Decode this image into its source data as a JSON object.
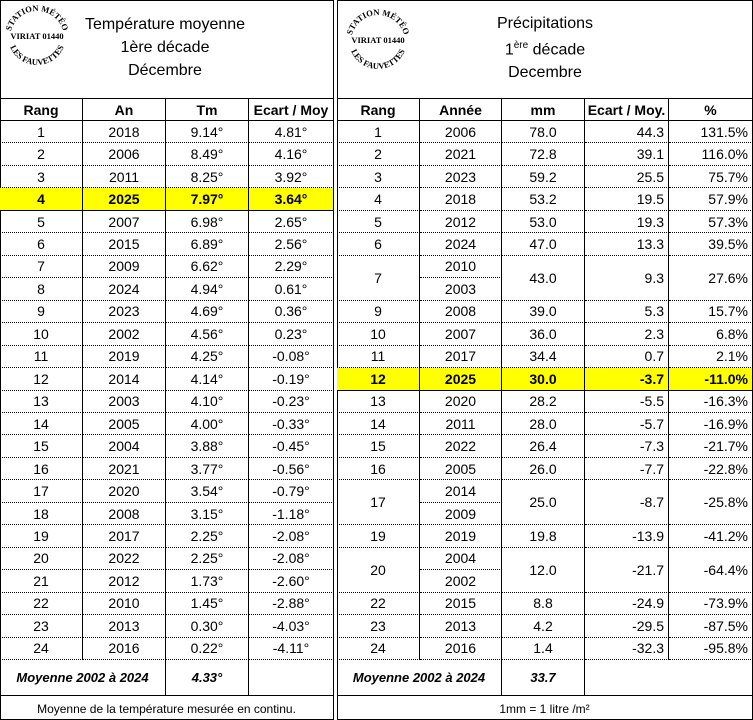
{
  "logo": {
    "top": "STATION MÉTÉO",
    "middle": "VIRIAT 01440",
    "bottom": "LES FAUVETTES"
  },
  "left": {
    "title": [
      "Température moyenne",
      "1ère décade",
      "Décembre"
    ],
    "columns": [
      "Rang",
      "An",
      "Tm",
      "Ecart / Moy"
    ],
    "rows": [
      {
        "cells": [
          "1",
          "2018",
          "9.14°",
          "4.81°"
        ]
      },
      {
        "cells": [
          "2",
          "2006",
          "8.49°",
          "4.16°"
        ]
      },
      {
        "cells": [
          "3",
          "2011",
          "8.25°",
          "3.92°"
        ]
      },
      {
        "cells": [
          "4",
          "2025",
          "7.97°",
          "3.64°"
        ],
        "highlight": true
      },
      {
        "cells": [
          "5",
          "2007",
          "6.98°",
          "2.65°"
        ]
      },
      {
        "cells": [
          "6",
          "2015",
          "6.89°",
          "2.56°"
        ]
      },
      {
        "cells": [
          "7",
          "2009",
          "6.62°",
          "2.29°"
        ]
      },
      {
        "cells": [
          "8",
          "2024",
          "4.94°",
          "0.61°"
        ]
      },
      {
        "cells": [
          "9",
          "2023",
          "4.69°",
          "0.36°"
        ]
      },
      {
        "cells": [
          "10",
          "2002",
          "4.56°",
          "0.23°"
        ]
      },
      {
        "cells": [
          "11",
          "2019",
          "4.25°",
          "-0.08°"
        ]
      },
      {
        "cells": [
          "12",
          "2014",
          "4.14°",
          "-0.19°"
        ]
      },
      {
        "cells": [
          "13",
          "2003",
          "4.10°",
          "-0.23°"
        ]
      },
      {
        "cells": [
          "14",
          "2005",
          "4.00°",
          "-0.33°"
        ]
      },
      {
        "cells": [
          "15",
          "2004",
          "3.88°",
          "-0.45°"
        ]
      },
      {
        "cells": [
          "16",
          "2021",
          "3.77°",
          "-0.56°"
        ]
      },
      {
        "cells": [
          "17",
          "2020",
          "3.54°",
          "-0.79°"
        ]
      },
      {
        "cells": [
          "18",
          "2008",
          "3.15°",
          "-1.18°"
        ]
      },
      {
        "cells": [
          "19",
          "2017",
          "2.25°",
          "-2.08°"
        ]
      },
      {
        "cells": [
          "20",
          "2022",
          "2.25°",
          "-2.08°"
        ]
      },
      {
        "cells": [
          "21",
          "2012",
          "1.73°",
          "-2.60°"
        ]
      },
      {
        "cells": [
          "22",
          "2010",
          "1.45°",
          "-2.88°"
        ]
      },
      {
        "cells": [
          "23",
          "2013",
          "0.30°",
          "-4.03°"
        ]
      },
      {
        "cells": [
          "24",
          "2016",
          "0.22°",
          "-4.11°"
        ]
      }
    ],
    "average": {
      "label": "Moyenne 2002 à 2024",
      "value": "4.33°"
    },
    "note": "Moyenne de la température mesurée en continu."
  },
  "right": {
    "title": {
      "line1": "Précipitations",
      "num": "1",
      "sup": "ère",
      "rest": "décade",
      "line3": "Decembre"
    },
    "columns": [
      "Rang",
      "Année",
      "mm",
      "Ecart / Moy.",
      "%"
    ],
    "rows": [
      {
        "rank": "1",
        "years": [
          "2006"
        ],
        "mm": "78.0",
        "ecart": "44.3",
        "pct": "131.5%"
      },
      {
        "rank": "2",
        "years": [
          "2021"
        ],
        "mm": "72.8",
        "ecart": "39.1",
        "pct": "116.0%"
      },
      {
        "rank": "3",
        "years": [
          "2023"
        ],
        "mm": "59.2",
        "ecart": "25.5",
        "pct": "75.7%"
      },
      {
        "rank": "4",
        "years": [
          "2018"
        ],
        "mm": "53.2",
        "ecart": "19.5",
        "pct": "57.9%"
      },
      {
        "rank": "5",
        "years": [
          "2012"
        ],
        "mm": "53.0",
        "ecart": "19.3",
        "pct": "57.3%"
      },
      {
        "rank": "6",
        "years": [
          "2024"
        ],
        "mm": "47.0",
        "ecart": "13.3",
        "pct": "39.5%"
      },
      {
        "rank": "7",
        "years": [
          "2010",
          "2003"
        ],
        "mm": "43.0",
        "ecart": "9.3",
        "pct": "27.6%"
      },
      {
        "rank": "9",
        "years": [
          "2008"
        ],
        "mm": "39.0",
        "ecart": "5.3",
        "pct": "15.7%"
      },
      {
        "rank": "10",
        "years": [
          "2007"
        ],
        "mm": "36.0",
        "ecart": "2.3",
        "pct": "6.8%"
      },
      {
        "rank": "11",
        "years": [
          "2017"
        ],
        "mm": "34.4",
        "ecart": "0.7",
        "pct": "2.1%"
      },
      {
        "rank": "12",
        "years": [
          "2025"
        ],
        "mm": "30.0",
        "ecart": "-3.7",
        "pct": "-11.0%",
        "highlight": true
      },
      {
        "rank": "13",
        "years": [
          "2020"
        ],
        "mm": "28.2",
        "ecart": "-5.5",
        "pct": "-16.3%"
      },
      {
        "rank": "14",
        "years": [
          "2011"
        ],
        "mm": "28.0",
        "ecart": "-5.7",
        "pct": "-16.9%"
      },
      {
        "rank": "15",
        "years": [
          "2022"
        ],
        "mm": "26.4",
        "ecart": "-7.3",
        "pct": "-21.7%"
      },
      {
        "rank": "16",
        "years": [
          "2005"
        ],
        "mm": "26.0",
        "ecart": "-7.7",
        "pct": "-22.8%"
      },
      {
        "rank": "17",
        "years": [
          "2014",
          "2009"
        ],
        "mm": "25.0",
        "ecart": "-8.7",
        "pct": "-25.8%"
      },
      {
        "rank": "19",
        "years": [
          "2019"
        ],
        "mm": "19.8",
        "ecart": "-13.9",
        "pct": "-41.2%"
      },
      {
        "rank": "20",
        "years": [
          "2004",
          "2002"
        ],
        "mm": "12.0",
        "ecart": "-21.7",
        "pct": "-64.4%"
      },
      {
        "rank": "22",
        "years": [
          "2015"
        ],
        "mm": "8.8",
        "ecart": "-24.9",
        "pct": "-73.9%"
      },
      {
        "rank": "23",
        "years": [
          "2013"
        ],
        "mm": "4.2",
        "ecart": "-29.5",
        "pct": "-87.5%"
      },
      {
        "rank": "24",
        "years": [
          "2016"
        ],
        "mm": "1.4",
        "ecart": "-32.3",
        "pct": "-95.8%"
      }
    ],
    "average": {
      "label": "Moyenne 2002 à 2024",
      "value": "33.7"
    },
    "note": "1mm = 1 litre /m²"
  }
}
